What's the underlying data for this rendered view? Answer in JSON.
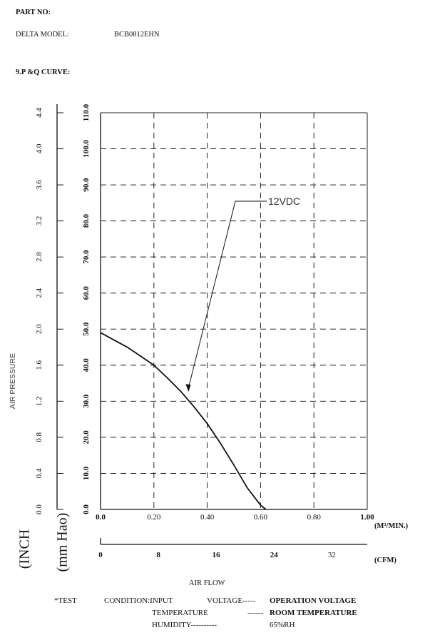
{
  "header": {
    "part_no_label": "PART  NO:",
    "delta_model_label": "DELTA  MODEL:",
    "delta_model_value": "BCB0812EHN",
    "section_title": "9.P     &Q     CURVE:"
  },
  "chart_data": {
    "type": "line",
    "title": "",
    "ylabel": "AIR    PRESSURE",
    "ylabel_units_inch": "(INCH",
    "ylabel_units_mm": "(mm Hao)",
    "xlabel": "AIR FLOW",
    "x_unit_m3": "(M³/MIN.)",
    "x_unit_cfm": "(CFM)",
    "xlim": [
      0,
      1.0
    ],
    "ylim_mm": [
      0,
      110
    ],
    "x_ticks": [
      "0.0",
      "0.20",
      "0.40",
      "0.60",
      "0.80",
      "1.00"
    ],
    "x_tick_values": [
      0,
      0.2,
      0.4,
      0.6,
      0.8,
      1.0
    ],
    "cfm_ticks": [
      "0",
      "8",
      "16",
      "24",
      "32"
    ],
    "cfm_tick_values": [
      0,
      8,
      16,
      24,
      32
    ],
    "y_mm_ticks": [
      "0.0",
      "10.0",
      "20.0",
      "30.0",
      "40.0",
      "50.0",
      "60.0",
      "70.0",
      "80.0",
      "90.0",
      "100.0",
      "110.0"
    ],
    "y_mm_tick_values": [
      0,
      10,
      20,
      30,
      40,
      50,
      60,
      70,
      80,
      90,
      100,
      110
    ],
    "y_inch_ticks": [
      "0.0",
      "0.4",
      "0.8",
      "1.2",
      "1.6",
      "2.0",
      "2.4",
      "2.8",
      "3.2",
      "3.6",
      "4.0",
      "4.4"
    ],
    "y_inch_tick_values": [
      0,
      0.4,
      0.8,
      1.2,
      1.6,
      2.0,
      2.4,
      2.8,
      3.2,
      3.6,
      4.0,
      4.4
    ],
    "grid": true,
    "series": [
      {
        "name": "12VDC",
        "x": [
          0.0,
          0.05,
          0.1,
          0.15,
          0.2,
          0.25,
          0.3,
          0.35,
          0.4,
          0.45,
          0.5,
          0.55,
          0.6,
          0.62
        ],
        "y": [
          49.0,
          47.0,
          45.0,
          42.5,
          40.0,
          36.5,
          32.8,
          28.5,
          23.8,
          18.3,
          12.3,
          6.0,
          1.2,
          0.0
        ]
      }
    ],
    "annotation": {
      "text": "12VDC",
      "target_x": 0.33,
      "target_y": 33
    }
  },
  "footer": {
    "test_label": "*TEST",
    "condition_label": "CONDITION:INPUT",
    "voltage_label": "VOLTAGE-----",
    "voltage_value": "OPERATION VOLTAGE",
    "temperature_label": "TEMPERATURE",
    "temperature_dashes": "------",
    "temperature_value": "ROOM TEMPERATURE",
    "humidity_label": "HUMIDITY----------",
    "humidity_value": "65%RH"
  },
  "colors": {
    "ink": "#111111",
    "grid": "#222222",
    "background": "#ffffff"
  }
}
